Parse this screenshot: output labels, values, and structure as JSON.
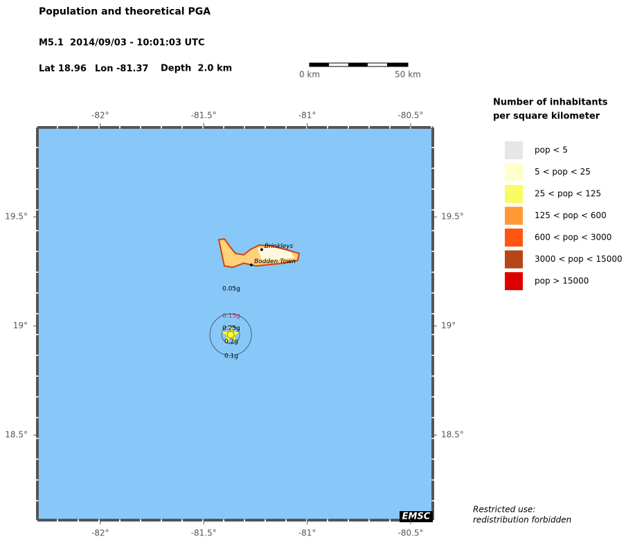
{
  "header": {
    "title": "Population and theoretical PGA",
    "event": "M5.1  2014/09/03 - 10:01:03 UTC",
    "lat_label": "Lat",
    "lat": 18.96,
    "lon_label": "Lon",
    "lon": -81.37,
    "depth": "Depth  2.0 km"
  },
  "scale_bar": {
    "start": "0 km",
    "end": "50 km"
  },
  "map": {
    "lonlim": [
      -82.304,
      -80.393
    ],
    "latlim": [
      18.11,
      19.91
    ],
    "lonticks": [
      {
        "value": -82,
        "label": "-82°"
      },
      {
        "value": -81.5,
        "label": "-81.5°"
      },
      {
        "value": -81,
        "label": "-81°"
      },
      {
        "value": -80.5,
        "label": "-80.5°"
      }
    ],
    "latticks": [
      {
        "value": 19.5,
        "label": "19.5°"
      },
      {
        "value": 19,
        "label": "19°"
      },
      {
        "value": 18.5,
        "label": "18.5°"
      }
    ],
    "places": [
      {
        "name": "Brinkleys",
        "lon": -81.22,
        "lat": 19.35
      },
      {
        "name": "Bodden Town",
        "lon": -81.27,
        "lat": 19.28
      }
    ],
    "pga_labels": [
      "0.05g",
      "0.15g",
      "0.25g",
      "0.2g",
      "0.1g"
    ],
    "logo": "EMSC"
  },
  "legend": {
    "title": [
      "Number of inhabitants",
      "per square kilometer"
    ],
    "entries": [
      {
        "label": "pop < 5",
        "color": "#e6e6e6"
      },
      {
        "label": "5 < pop < 25",
        "color": "#ffffcc"
      },
      {
        "label": "25 < pop < 125",
        "color": "#fafa64"
      },
      {
        "label": "125 < pop < 600",
        "color": "#ff9933"
      },
      {
        "label": "600 < pop < 3000",
        "color": "#ff5511"
      },
      {
        "label": "3000 < pop < 15000",
        "color": "#b84515"
      },
      {
        "label": "pop > 15000",
        "color": "#dd0000"
      }
    ]
  },
  "footer": [
    "Restricted use:",
    "redistribution forbidden"
  ]
}
